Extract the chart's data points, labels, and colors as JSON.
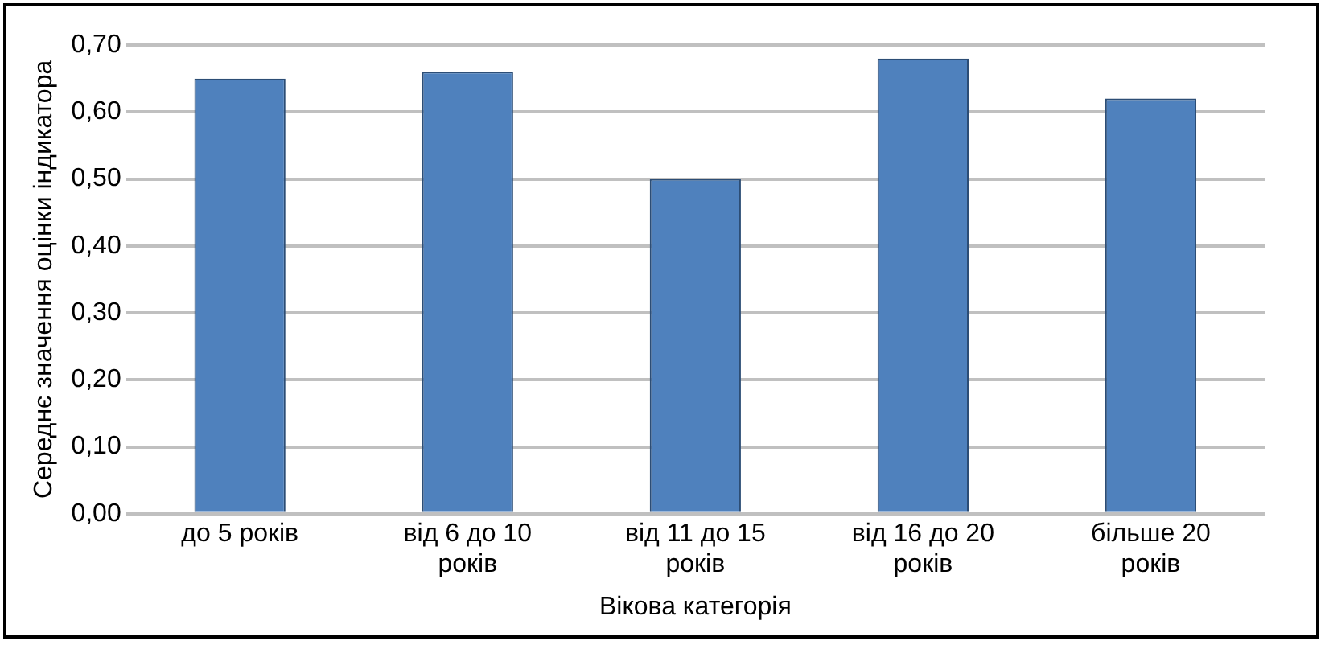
{
  "chart_data": {
    "type": "bar",
    "categories": [
      "до 5 років",
      "від 6 до 10 років",
      "від 11 до 15 років",
      "від 16 до 20 років",
      "більше 20 років"
    ],
    "values": [
      0.65,
      0.66,
      0.5,
      0.68,
      0.62
    ],
    "color": "#4f81bd",
    "xlabel": "Вікова категорія",
    "ylabel": "Середнє значення оцінки індикатора",
    "ylim": [
      0,
      0.7
    ],
    "yticks": [
      {
        "value": 0,
        "label": "0,00"
      },
      {
        "value": 0.1,
        "label": "0,10"
      },
      {
        "value": 0.2,
        "label": "0,20"
      },
      {
        "value": 0.3,
        "label": "0,30"
      },
      {
        "value": 0.4,
        "label": "0,40"
      },
      {
        "value": 0.5,
        "label": "0,50"
      },
      {
        "value": 0.6,
        "label": "0,60"
      },
      {
        "value": 0.7,
        "label": "0,70"
      }
    ],
    "grid": "y"
  }
}
